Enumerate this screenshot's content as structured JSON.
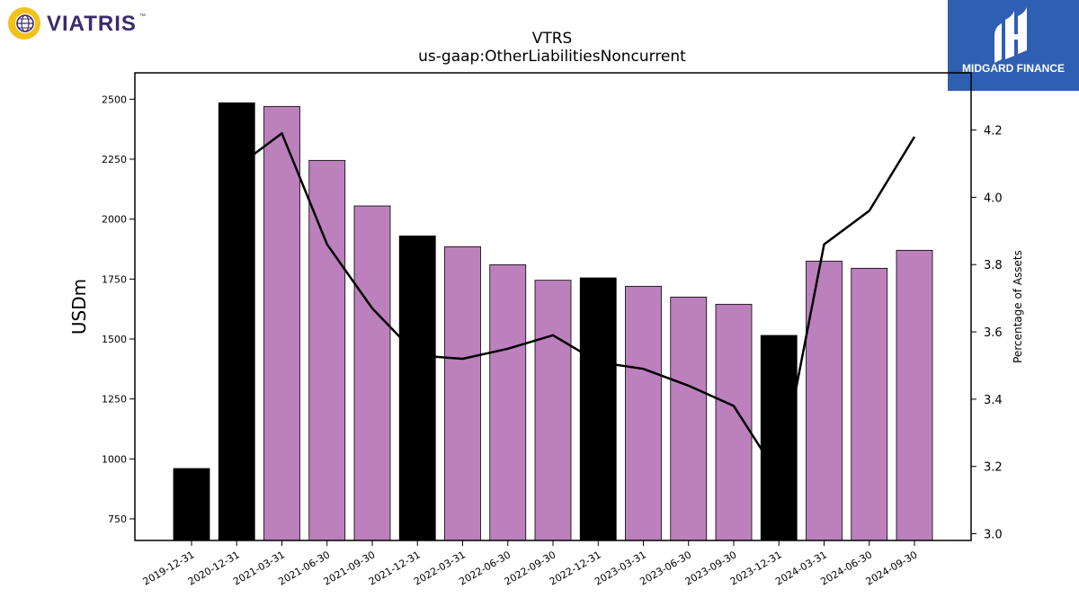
{
  "company_logo": {
    "text": "VIATRIS",
    "tm": "™",
    "colors": {
      "text": "#3a2b6b",
      "purple": "#6b3fa0",
      "yellow": "#f2c21b",
      "globe": "#3a2b6b"
    }
  },
  "brand_logo": {
    "text": "MIDGARD FINANCE",
    "bg": "#2f5fb3",
    "fg": "#ffffff"
  },
  "colors": {
    "bar_primary": "#bc80bd",
    "bar_highlight": "#000000",
    "line": "#000000",
    "axis": "#000000"
  },
  "chart_data": {
    "type": "bar",
    "title": "VTRS",
    "subtitle": "us-gaap:OtherLiabilitiesNoncurrent",
    "ylabel": "USDm",
    "ylabel_right": "Percentage of Assets",
    "ylim": [
      660,
      2610
    ],
    "ylim_right": [
      2.98,
      4.37
    ],
    "yticks": [
      750,
      1000,
      1250,
      1500,
      1750,
      2000,
      2250,
      2500
    ],
    "yticks_right": [
      3.0,
      3.2,
      3.4,
      3.6,
      3.8,
      4.0,
      4.2
    ],
    "categories": [
      "2019-12-31",
      "2020-12-31",
      "2021-03-31",
      "2021-06-30",
      "2021-09-30",
      "2021-12-31",
      "2022-03-31",
      "2022-06-30",
      "2022-09-30",
      "2022-12-31",
      "2023-03-31",
      "2023-06-30",
      "2023-09-30",
      "2023-12-31",
      "2024-03-31",
      "2024-06-30",
      "2024-09-30"
    ],
    "series": [
      {
        "type": "bar",
        "values": [
          960,
          2485,
          2470,
          2245,
          2055,
          1930,
          1885,
          1810,
          1745,
          1755,
          1720,
          1675,
          1645,
          1515,
          1825,
          1795,
          1870
        ],
        "highlight": [
          true,
          true,
          false,
          false,
          false,
          true,
          false,
          false,
          false,
          true,
          false,
          false,
          false,
          true,
          false,
          false,
          false
        ]
      },
      {
        "type": "line",
        "axis": "right",
        "values": [
          null,
          4.09,
          4.19,
          3.86,
          3.67,
          3.53,
          3.52,
          3.55,
          3.59,
          3.51,
          3.49,
          3.44,
          3.38,
          3.17,
          3.86,
          3.96,
          4.18
        ]
      }
    ],
    "grid": false,
    "legend": "none"
  }
}
